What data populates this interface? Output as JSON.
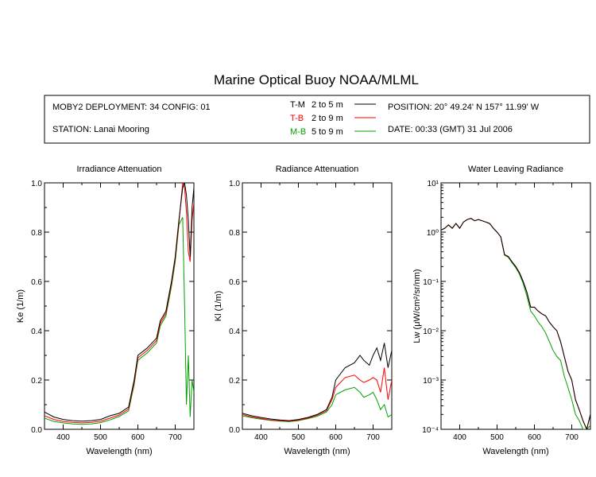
{
  "title": "Marine Optical Buoy NOAA/MLML",
  "info": {
    "deployment": "MOBY2 DEPLOYMENT: 34 CONFIG: 01",
    "station": "STATION: Lanai Mooring",
    "position": "POSITION: 20° 49.24' N   157° 11.99' W",
    "date": "DATE: 00:33 (GMT) 31 Jul 2006"
  },
  "legend": [
    {
      "code": "T-M",
      "range": "2 to 5  m",
      "color": "#000000"
    },
    {
      "code": "T-B",
      "range": "2 to 9  m",
      "color": "#ff0000"
    },
    {
      "code": "M-B",
      "range": "5 to 9  m",
      "color": "#00a000"
    }
  ],
  "chart_data": [
    {
      "type": "line",
      "title": "Irradiance Attenuation",
      "xlabel": "Wavelength (nm)",
      "ylabel": "Ke  (1/m)",
      "xlim": [
        350,
        750
      ],
      "ylim": [
        0,
        1.0
      ],
      "xticks": [
        400,
        500,
        600,
        700
      ],
      "yticks": [
        "0.0",
        "0.2",
        "0.4",
        "0.6",
        "0.8",
        "1.0"
      ],
      "yscale": "linear",
      "x": [
        350,
        375,
        400,
        425,
        450,
        475,
        500,
        525,
        550,
        575,
        590,
        600,
        625,
        650,
        660,
        675,
        690,
        700,
        710,
        720,
        725,
        730,
        735,
        740,
        745,
        750
      ],
      "series": [
        {
          "name": "T-M",
          "color": "#000000",
          "values": [
            0.07,
            0.05,
            0.04,
            0.035,
            0.033,
            0.035,
            0.04,
            0.055,
            0.065,
            0.09,
            0.2,
            0.3,
            0.33,
            0.37,
            0.44,
            0.48,
            0.6,
            0.7,
            0.85,
            0.98,
            1.0,
            0.95,
            0.85,
            0.7,
            0.9,
            0.98
          ]
        },
        {
          "name": "T-B",
          "color": "#ff0000",
          "values": [
            0.055,
            0.04,
            0.032,
            0.028,
            0.026,
            0.028,
            0.033,
            0.045,
            0.058,
            0.082,
            0.19,
            0.29,
            0.32,
            0.36,
            0.43,
            0.47,
            0.59,
            0.69,
            0.84,
            1.0,
            0.98,
            0.88,
            0.72,
            0.68,
            0.85,
            0.92
          ]
        },
        {
          "name": "M-B",
          "color": "#00a000",
          "values": [
            0.045,
            0.032,
            0.026,
            0.022,
            0.02,
            0.022,
            0.027,
            0.038,
            0.052,
            0.075,
            0.18,
            0.28,
            0.31,
            0.35,
            0.42,
            0.46,
            0.58,
            0.68,
            0.83,
            0.86,
            0.5,
            0.1,
            0.3,
            0.05,
            0.2,
            0.15
          ]
        }
      ]
    },
    {
      "type": "line",
      "title": "Radiance Attenuation",
      "xlabel": "Wavelength (nm)",
      "ylabel": "Kl  (1/m)",
      "xlim": [
        350,
        750
      ],
      "ylim": [
        0,
        1.0
      ],
      "xticks": [
        400,
        500,
        600,
        700
      ],
      "yticks": [
        "0.0",
        "0.2",
        "0.4",
        "0.6",
        "0.8",
        "1.0"
      ],
      "yscale": "linear",
      "x": [
        350,
        375,
        400,
        425,
        450,
        475,
        500,
        525,
        550,
        575,
        590,
        600,
        625,
        650,
        665,
        675,
        690,
        700,
        710,
        720,
        730,
        740,
        750
      ],
      "series": [
        {
          "name": "T-M",
          "color": "#000000",
          "values": [
            0.065,
            0.055,
            0.048,
            0.042,
            0.038,
            0.035,
            0.04,
            0.048,
            0.06,
            0.08,
            0.13,
            0.2,
            0.25,
            0.27,
            0.3,
            0.28,
            0.26,
            0.3,
            0.33,
            0.28,
            0.35,
            0.25,
            0.32
          ]
        },
        {
          "name": "T-B",
          "color": "#ff0000",
          "values": [
            0.06,
            0.05,
            0.044,
            0.038,
            0.035,
            0.033,
            0.037,
            0.045,
            0.057,
            0.075,
            0.12,
            0.17,
            0.21,
            0.22,
            0.2,
            0.19,
            0.2,
            0.21,
            0.2,
            0.15,
            0.25,
            0.12,
            0.2
          ]
        },
        {
          "name": "M-B",
          "color": "#00a000",
          "values": [
            0.055,
            0.047,
            0.041,
            0.036,
            0.033,
            0.031,
            0.035,
            0.043,
            0.053,
            0.07,
            0.1,
            0.14,
            0.16,
            0.17,
            0.15,
            0.13,
            0.14,
            0.15,
            0.12,
            0.08,
            0.1,
            0.05,
            0.06
          ]
        }
      ]
    },
    {
      "type": "line",
      "title": "Water Leaving Radiance",
      "xlabel": "Wavelength (nm)",
      "ylabel": "Lw  (μW/cm²/sr/nm)",
      "xlim": [
        350,
        750
      ],
      "ylim": [
        0.0001,
        10
      ],
      "xticks": [
        400,
        500,
        600,
        700
      ],
      "yticks": [
        "10⁻⁴",
        "10⁻³",
        "10⁻²",
        "10⁻¹",
        "10⁰",
        "10¹"
      ],
      "yscale": "log",
      "x": [
        350,
        360,
        370,
        380,
        390,
        400,
        410,
        420,
        430,
        440,
        450,
        460,
        470,
        480,
        490,
        500,
        510,
        520,
        530,
        540,
        550,
        560,
        570,
        580,
        590,
        600,
        610,
        620,
        630,
        640,
        650,
        660,
        670,
        680,
        690,
        700,
        710,
        720,
        730,
        740,
        750
      ],
      "series": [
        {
          "name": "T-M",
          "color": "#000000",
          "values": [
            1.1,
            1.2,
            1.4,
            1.2,
            1.5,
            1.2,
            1.6,
            1.8,
            1.9,
            1.7,
            1.8,
            1.7,
            1.6,
            1.5,
            1.2,
            1.0,
            0.8,
            0.35,
            0.32,
            0.25,
            0.2,
            0.15,
            0.1,
            0.06,
            0.03,
            0.03,
            0.025,
            0.022,
            0.02,
            0.015,
            0.012,
            0.01,
            0.006,
            0.003,
            0.0015,
            0.001,
            0.0004,
            0.00025,
            0.00015,
            0.0001,
            0.0002
          ]
        },
        {
          "name": "T-B",
          "color": "#ff0000",
          "values": [
            1.1,
            1.2,
            1.4,
            1.2,
            1.5,
            1.2,
            1.6,
            1.8,
            1.9,
            1.7,
            1.8,
            1.7,
            1.6,
            1.5,
            1.2,
            1.0,
            0.8,
            0.35,
            0.32,
            0.25,
            0.2,
            0.15,
            0.1,
            0.06,
            0.03,
            0.03,
            0.025,
            0.022,
            0.02,
            0.015,
            0.012,
            0.01,
            0.006,
            0.003,
            0.0015,
            0.001,
            0.0004,
            0.00025,
            0.00015,
            0.0001,
            0.0002
          ]
        },
        {
          "name": "M-B",
          "color": "#00a000",
          "values": [
            1.1,
            1.2,
            1.4,
            1.2,
            1.5,
            1.2,
            1.6,
            1.8,
            1.9,
            1.7,
            1.8,
            1.7,
            1.6,
            1.5,
            1.2,
            1.0,
            0.8,
            0.34,
            0.31,
            0.24,
            0.19,
            0.14,
            0.09,
            0.05,
            0.025,
            0.02,
            0.015,
            0.012,
            0.009,
            0.006,
            0.004,
            0.003,
            0.0025,
            0.0012,
            0.0007,
            0.0004,
            0.0002,
            0.00015,
            0.0001,
            0.0001,
            0.00012
          ]
        }
      ]
    }
  ]
}
